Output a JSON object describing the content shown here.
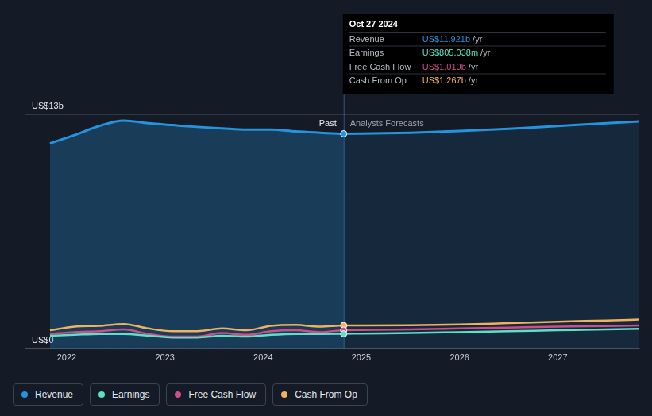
{
  "chart_data": {
    "type": "line",
    "x": [
      2021.83,
      2022.08,
      2022.33,
      2022.58,
      2022.83,
      2023.08,
      2023.33,
      2023.58,
      2023.83,
      2024.08,
      2024.33,
      2024.58,
      2024.82,
      2025.0,
      2025.5,
      2026.0,
      2026.5,
      2027.0,
      2027.5,
      2027.83
    ],
    "xlim": [
      2021.58,
      2027.83
    ],
    "xticks": [
      2022,
      2023,
      2024,
      2025,
      2026,
      2027
    ],
    "ylim": [
      0,
      13
    ],
    "yticks": [
      {
        "value": 0,
        "label": "US$0"
      },
      {
        "value": 13,
        "label": "US$13b"
      }
    ],
    "grid": true,
    "legend": "bottom",
    "series": [
      {
        "name": "Revenue",
        "color": "#2394df",
        "values": [
          11.39,
          11.85,
          12.35,
          12.65,
          12.5,
          12.4,
          12.3,
          12.22,
          12.15,
          12.15,
          12.05,
          11.98,
          11.921,
          11.93,
          11.98,
          12.07,
          12.2,
          12.35,
          12.5,
          12.6
        ]
      },
      {
        "name": "Earnings",
        "color": "#5ce1c6",
        "values": [
          0.7,
          0.75,
          0.8,
          0.8,
          0.7,
          0.6,
          0.6,
          0.7,
          0.65,
          0.75,
          0.8,
          0.8,
          0.805,
          0.82,
          0.85,
          0.9,
          0.95,
          1.0,
          1.05,
          1.08
        ]
      },
      {
        "name": "Free Cash Flow",
        "color": "#d14d8a",
        "values": [
          0.8,
          0.9,
          0.95,
          1.05,
          0.8,
          0.65,
          0.65,
          0.85,
          0.75,
          0.95,
          1.0,
          0.9,
          1.01,
          1.02,
          1.05,
          1.1,
          1.15,
          1.2,
          1.24,
          1.27
        ]
      },
      {
        "name": "Cash From Op",
        "color": "#f2b25c",
        "values": [
          1.0,
          1.2,
          1.25,
          1.35,
          1.1,
          0.95,
          0.95,
          1.1,
          1.0,
          1.25,
          1.3,
          1.2,
          1.267,
          1.27,
          1.28,
          1.32,
          1.4,
          1.48,
          1.55,
          1.6
        ]
      }
    ],
    "annotations": {
      "divider": {
        "x": 2024.82,
        "before": "Past",
        "after": "Analysts Forecasts"
      },
      "tooltip": {
        "x": 2024.82,
        "title": "Oct 27 2024",
        "rows": [
          {
            "name": "Revenue",
            "value": 11.921,
            "label": "US$11.921b",
            "unit": "/yr"
          },
          {
            "name": "Earnings",
            "value": 0.805038,
            "label": "US$805.038m",
            "unit": "/yr"
          },
          {
            "name": "Free Cash Flow",
            "value": 1.01,
            "label": "US$1.010b",
            "unit": "/yr"
          },
          {
            "name": "Cash From Op",
            "value": 1.267,
            "label": "US$1.267b",
            "unit": "/yr"
          }
        ]
      }
    }
  }
}
